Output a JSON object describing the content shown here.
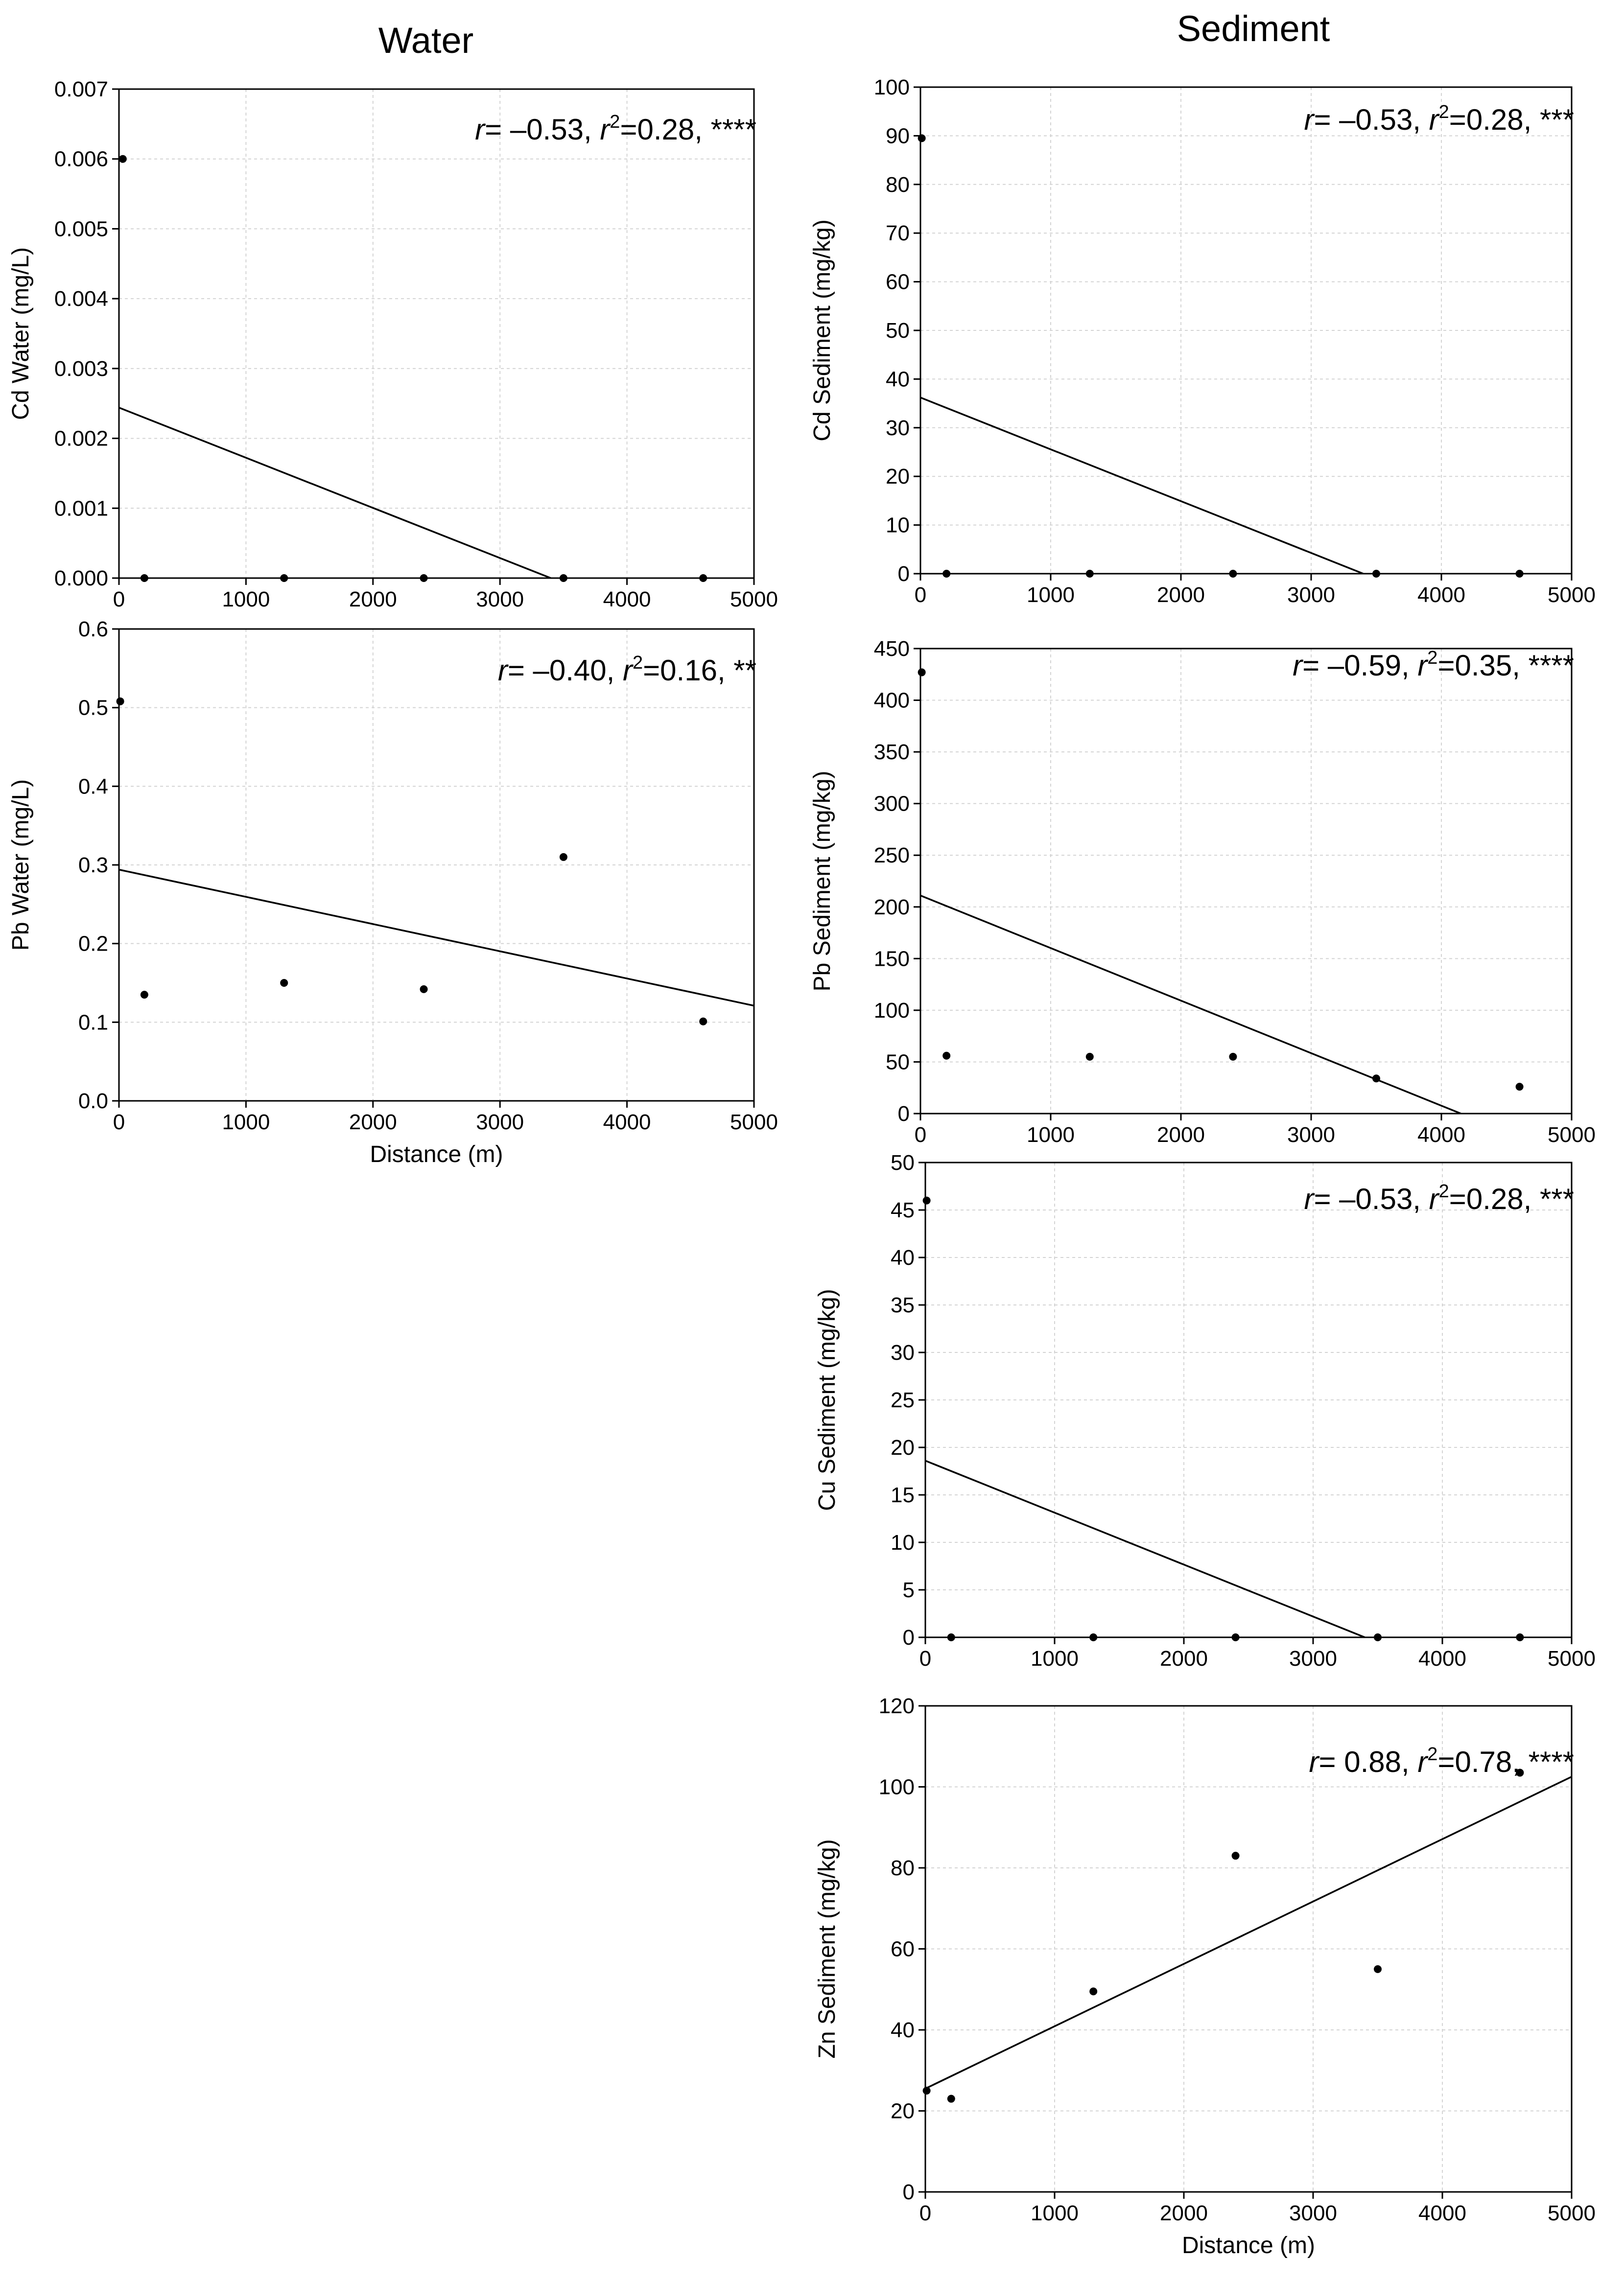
{
  "columns": {
    "water_title": "Water",
    "sediment_title": "Sediment"
  },
  "chart_data": [
    {
      "id": "cd-water",
      "type": "scatter",
      "ylabel": "Cd Water (mg/L)",
      "xlabel": "",
      "xlim": [
        0,
        5000
      ],
      "ylim": [
        0,
        0.007
      ],
      "xticks": [
        0,
        1000,
        2000,
        3000,
        4000,
        5000
      ],
      "xtick_labels": [
        "0",
        "1000",
        "2000",
        "3000",
        "4000",
        "5000"
      ],
      "yticks": [
        0,
        0.001,
        0.002,
        0.003,
        0.004,
        0.005,
        0.006,
        0.007
      ],
      "ytick_labels": [
        "0.000",
        "0.001",
        "0.002",
        "0.003",
        "0.004",
        "0.005",
        "0.006",
        "0.007"
      ],
      "x": [
        30,
        200,
        1300,
        2400,
        3500,
        4600
      ],
      "y": [
        0.006,
        0,
        0,
        0,
        0,
        0
      ],
      "fit_line": {
        "x": [
          0,
          3400
        ],
        "y": [
          0.00244,
          0
        ]
      },
      "annotation": {
        "r": "r",
        "rval": "= –0.53, ",
        "r2": "r",
        "sup": "2",
        "rest": "=0.28, ****"
      }
    },
    {
      "id": "pb-water",
      "type": "scatter",
      "ylabel": "Pb Water (mg/L)",
      "xlabel": "Distance (m)",
      "xlim": [
        0,
        5000
      ],
      "ylim": [
        0,
        0.6
      ],
      "xticks": [
        0,
        1000,
        2000,
        3000,
        4000,
        5000
      ],
      "xtick_labels": [
        "0",
        "1000",
        "2000",
        "3000",
        "4000",
        "5000"
      ],
      "yticks": [
        0,
        0.1,
        0.2,
        0.3,
        0.4,
        0.5,
        0.6
      ],
      "ytick_labels": [
        "0.0",
        "0.1",
        "0.2",
        "0.3",
        "0.4",
        "0.5",
        "0.6"
      ],
      "x": [
        10,
        200,
        1300,
        2400,
        3500,
        4600
      ],
      "y": [
        0.508,
        0.135,
        0.15,
        0.142,
        0.31,
        0.101
      ],
      "fit_line": {
        "x": [
          0,
          5000
        ],
        "y": [
          0.294,
          0.121
        ]
      },
      "annotation": {
        "r": "r",
        "rval": "= –0.40, ",
        "r2": "r",
        "sup": "2",
        "rest": "=0.16, **"
      }
    },
    {
      "id": "cd-sediment",
      "type": "scatter",
      "ylabel": "Cd Sediment (mg/kg)",
      "xlabel": "",
      "xlim": [
        0,
        5000
      ],
      "ylim": [
        0,
        100
      ],
      "xticks": [
        0,
        1000,
        2000,
        3000,
        4000,
        5000
      ],
      "xtick_labels": [
        "0",
        "1000",
        "2000",
        "3000",
        "4000",
        "5000"
      ],
      "yticks": [
        0,
        10,
        20,
        30,
        40,
        50,
        60,
        70,
        80,
        90,
        100
      ],
      "ytick_labels": [
        "0",
        "10",
        "20",
        "30",
        "40",
        "50",
        "60",
        "70",
        "80",
        "90",
        "100"
      ],
      "x": [
        10,
        200,
        1300,
        2400,
        3500,
        4600
      ],
      "y": [
        89.5,
        0,
        0,
        0,
        0,
        0
      ],
      "fit_line": {
        "x": [
          0,
          3400
        ],
        "y": [
          36.2,
          0
        ]
      },
      "annotation": {
        "r": "r",
        "rval": "= –0.53, ",
        "r2": "r",
        "sup": "2",
        "rest": "=0.28, ***"
      }
    },
    {
      "id": "pb-sediment",
      "type": "scatter",
      "ylabel": "Pb Sediment (mg/kg)",
      "xlabel": "",
      "xlim": [
        0,
        5000
      ],
      "ylim": [
        0,
        450
      ],
      "xticks": [
        0,
        1000,
        2000,
        3000,
        4000,
        5000
      ],
      "xtick_labels": [
        "0",
        "1000",
        "2000",
        "3000",
        "4000",
        "5000"
      ],
      "yticks": [
        0,
        50,
        100,
        150,
        200,
        250,
        300,
        350,
        400,
        450
      ],
      "ytick_labels": [
        "0",
        "50",
        "100",
        "150",
        "200",
        "250",
        "300",
        "350",
        "400",
        "450"
      ],
      "x": [
        10,
        200,
        1300,
        2400,
        3500,
        4600
      ],
      "y": [
        427,
        56,
        55,
        55,
        34,
        26
      ],
      "fit_line": {
        "x": [
          0,
          4150
        ],
        "y": [
          211,
          0
        ]
      },
      "annotation": {
        "r": "r",
        "rval": "= –0.59, ",
        "r2": "r",
        "sup": "2",
        "rest": "=0.35, ****"
      }
    },
    {
      "id": "cu-sediment",
      "type": "scatter",
      "ylabel": "Cu Sediment (mg/kg)",
      "xlabel": "",
      "xlim": [
        0,
        5000
      ],
      "ylim": [
        0,
        50
      ],
      "xticks": [
        0,
        1000,
        2000,
        3000,
        4000,
        5000
      ],
      "xtick_labels": [
        "0",
        "1000",
        "2000",
        "3000",
        "4000",
        "5000"
      ],
      "yticks": [
        0,
        5,
        10,
        15,
        20,
        25,
        30,
        35,
        40,
        45,
        50
      ],
      "ytick_labels": [
        "0",
        "5",
        "10",
        "15",
        "20",
        "25",
        "30",
        "35",
        "40",
        "45",
        "50"
      ],
      "x": [
        10,
        200,
        1300,
        2400,
        3500,
        4600
      ],
      "y": [
        46,
        0,
        0,
        0,
        0,
        0
      ],
      "fit_line": {
        "x": [
          0,
          3400
        ],
        "y": [
          18.6,
          0
        ]
      },
      "annotation": {
        "r": "r",
        "rval": "= –0.53, ",
        "r2": "r",
        "sup": "2",
        "rest": "=0.28, ***"
      }
    },
    {
      "id": "zn-sediment",
      "type": "scatter",
      "ylabel": "Zn Sediment (mg/kg)",
      "xlabel": "Distance (m)",
      "xlim": [
        0,
        5000
      ],
      "ylim": [
        0,
        120
      ],
      "xticks": [
        0,
        1000,
        2000,
        3000,
        4000,
        5000
      ],
      "xtick_labels": [
        "0",
        "1000",
        "2000",
        "3000",
        "4000",
        "5000"
      ],
      "yticks": [
        0,
        20,
        40,
        60,
        80,
        100,
        120
      ],
      "ytick_labels": [
        "0",
        "20",
        "40",
        "60",
        "80",
        "100",
        "120"
      ],
      "x": [
        10,
        200,
        1300,
        2400,
        3500,
        4600
      ],
      "y": [
        25,
        23,
        49.5,
        83,
        55,
        103.5
      ],
      "fit_line": {
        "x": [
          0,
          5000
        ],
        "y": [
          25.5,
          102.5
        ]
      },
      "annotation": {
        "r": "r",
        "rval": "= 0.88, ",
        "r2": "r",
        "sup": "2",
        "rest": "=0.78, ****"
      }
    }
  ]
}
